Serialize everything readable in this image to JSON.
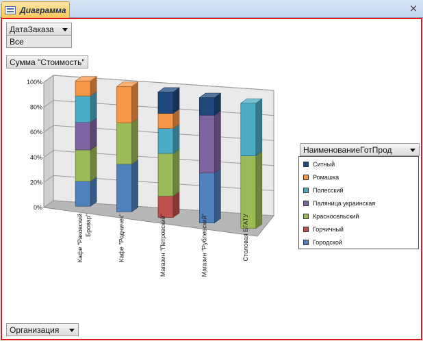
{
  "tab": {
    "title": "Диаграмма",
    "icon": "form-icon"
  },
  "close": {
    "glyph": "×"
  },
  "filter_field": {
    "label": "ДатаЗаказа",
    "value": "Все"
  },
  "data_field": {
    "label": "Сумма \"Стоимость\""
  },
  "category_field": {
    "label": "Организация"
  },
  "series_field": {
    "label": "НаименованиеГотПрод"
  },
  "chart_data": {
    "type": "bar",
    "stacked": "percent",
    "three_d": true,
    "categories": [
      "Кафе \"Раковский Бровар\"",
      "Кафе \"Родничек\"",
      "Магазин \"Петровский\"",
      "Магазин \"Рублевский\"",
      "Столовая БГАТУ"
    ],
    "category_lines": [
      [
        "Кафе \"Раковский",
        "Бровар\""
      ],
      [
        "Кафе \"Родничек\""
      ],
      [
        "Магазин \"Петровский\""
      ],
      [
        "Магазин \"Рублевский\""
      ],
      [
        "Столовая БГАТУ"
      ]
    ],
    "yticks": [
      "0%",
      "20%",
      "40%",
      "60%",
      "80%",
      "100%"
    ],
    "ylim": [
      0,
      100
    ],
    "series": [
      {
        "name": "Городской",
        "color": "#4f81bd",
        "values": [
          20,
          38,
          0,
          40,
          0
        ]
      },
      {
        "name": "Горчичный",
        "color": "#c0504d",
        "values": [
          0,
          0,
          17,
          0,
          0
        ]
      },
      {
        "name": "Красносельский",
        "color": "#9bbb59",
        "values": [
          25,
          33,
          34,
          0,
          58
        ]
      },
      {
        "name": "Паляница украинская",
        "color": "#8064a2",
        "values": [
          22,
          0,
          0,
          46,
          0
        ]
      },
      {
        "name": "Полесский",
        "color": "#4bacc6",
        "values": [
          21,
          0,
          20,
          0,
          42
        ]
      },
      {
        "name": "Ромашка",
        "color": "#f79646",
        "values": [
          12,
          29,
          12,
          0,
          0
        ]
      },
      {
        "name": "Ситный",
        "color": "#1f497d",
        "values": [
          0,
          0,
          17,
          14,
          0
        ]
      }
    ]
  }
}
